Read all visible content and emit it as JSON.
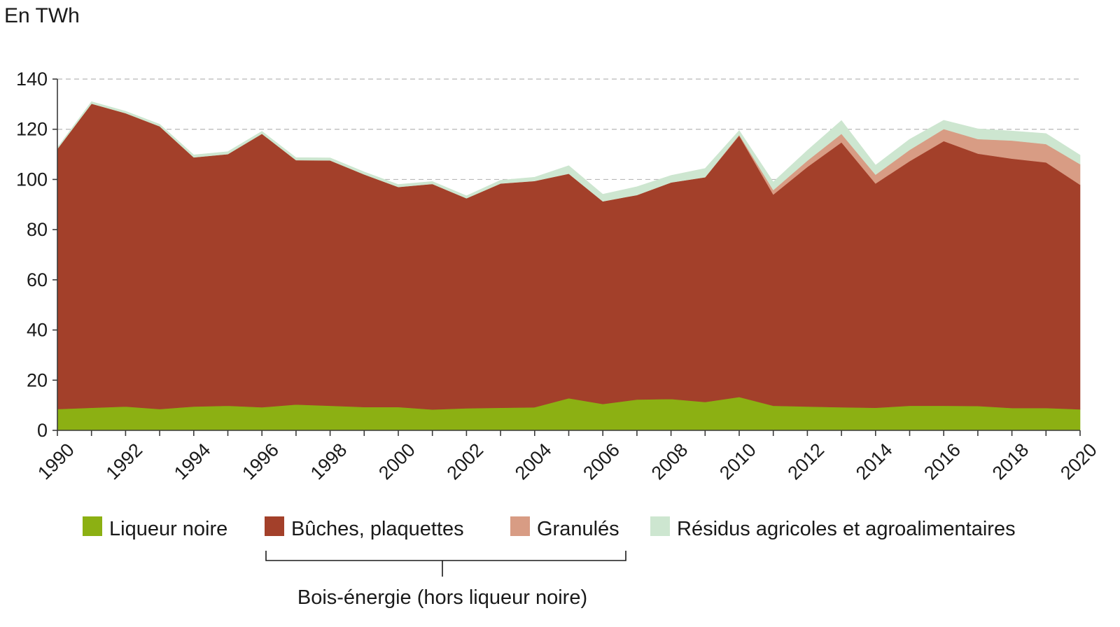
{
  "chart_data": {
    "type": "area",
    "stacked": true,
    "unit_label": "En TWh",
    "x": [
      1990,
      1991,
      1992,
      1993,
      1994,
      1995,
      1996,
      1997,
      1998,
      1999,
      2000,
      2001,
      2002,
      2003,
      2004,
      2005,
      2006,
      2007,
      2008,
      2009,
      2010,
      2011,
      2012,
      2013,
      2014,
      2015,
      2016,
      2017,
      2018,
      2019,
      2020
    ],
    "x_tick_labels": [
      "1990",
      "1992",
      "1994",
      "1996",
      "1998",
      "2000",
      "2002",
      "2004",
      "2006",
      "2008",
      "2010",
      "2012",
      "2014",
      "2016",
      "2018",
      "2020"
    ],
    "y_tick_labels": [
      "0",
      "20",
      "40",
      "60",
      "80",
      "100",
      "120",
      "140"
    ],
    "ylim": [
      0,
      140
    ],
    "grid": true,
    "series": [
      {
        "name": "Liqueur noire",
        "color": "#8cb013",
        "values": [
          8.5,
          9,
          9.5,
          8.5,
          9.5,
          9.8,
          9.2,
          10.3,
          9.8,
          9.3,
          9.3,
          8.3,
          8.8,
          9,
          9.2,
          12.8,
          10.5,
          12.3,
          12.5,
          11.3,
          13.3,
          9.8,
          9.5,
          9.2,
          9,
          9.8,
          9.8,
          9.7,
          8.9,
          8.9,
          8.4
        ]
      },
      {
        "name": "Bûches, plaquettes",
        "color": "#a3402a",
        "values": [
          103.7,
          121.2,
          116.9,
          112.7,
          99.3,
          100.3,
          109,
          97.4,
          97.8,
          92.7,
          87.7,
          89.9,
          83.7,
          89.4,
          90.2,
          89.5,
          80.8,
          81.5,
          86.3,
          89.6,
          104.2,
          84.2,
          95.5,
          105.6,
          89.4,
          97.5,
          105.5,
          100.6,
          99.4,
          97.9,
          89.5
        ]
      },
      {
        "name": "Granulés",
        "color": "#d89c84",
        "values": [
          0,
          0,
          0,
          0,
          0,
          0,
          0,
          0,
          0,
          0,
          0,
          0,
          0,
          0,
          0,
          0,
          0,
          0,
          0,
          0,
          0.3,
          1.8,
          2.5,
          3.4,
          3.5,
          4.5,
          4.8,
          5.8,
          7.2,
          7.3,
          8.2
        ]
      },
      {
        "name": "Résidus agricoles et agroalimentaires",
        "color": "#cde6d0",
        "values": [
          0.5,
          0.8,
          0.8,
          0.8,
          1,
          1,
          1,
          1,
          1,
          1,
          1,
          1,
          1,
          1.3,
          1.5,
          3.2,
          2.8,
          3.3,
          2.8,
          3.5,
          1.7,
          3.2,
          4.1,
          5.3,
          3.8,
          4.2,
          3.5,
          4.1,
          3.8,
          4.2,
          3.6
        ]
      }
    ],
    "bracket_label": "Bois-énergie (hors liqueur noire)",
    "bracket_groups": [
      "Bûches, plaquettes",
      "Granulés"
    ]
  }
}
